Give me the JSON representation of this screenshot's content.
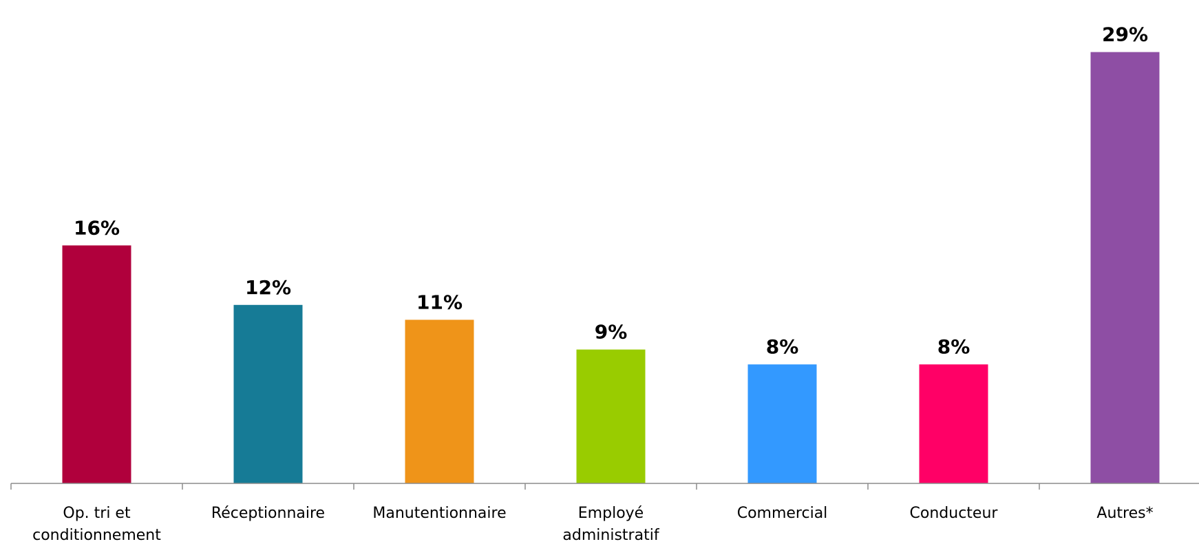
{
  "chart_data": {
    "type": "bar",
    "title": "",
    "xlabel": "",
    "ylabel": "",
    "ylim": [
      0,
      30
    ],
    "grid": false,
    "legend": "none",
    "unit": "%",
    "categories": [
      [
        "Op. tri et",
        "conditionnement"
      ],
      [
        "Réceptionnaire"
      ],
      [
        "Manutentionnaire"
      ],
      [
        "Employé",
        "administratif"
      ],
      [
        "Commercial"
      ],
      [
        "Conducteur"
      ],
      [
        "Autres*"
      ]
    ],
    "values": [
      16,
      12,
      11,
      9,
      8,
      8,
      29
    ],
    "value_labels": [
      "16%",
      "12%",
      "11%",
      "9%",
      "8%",
      "8%",
      "29%"
    ],
    "colors": [
      "#b0003c",
      "#167b96",
      "#ef9419",
      "#99cc00",
      "#3399ff",
      "#ff0066",
      "#8e4ea4"
    ]
  }
}
